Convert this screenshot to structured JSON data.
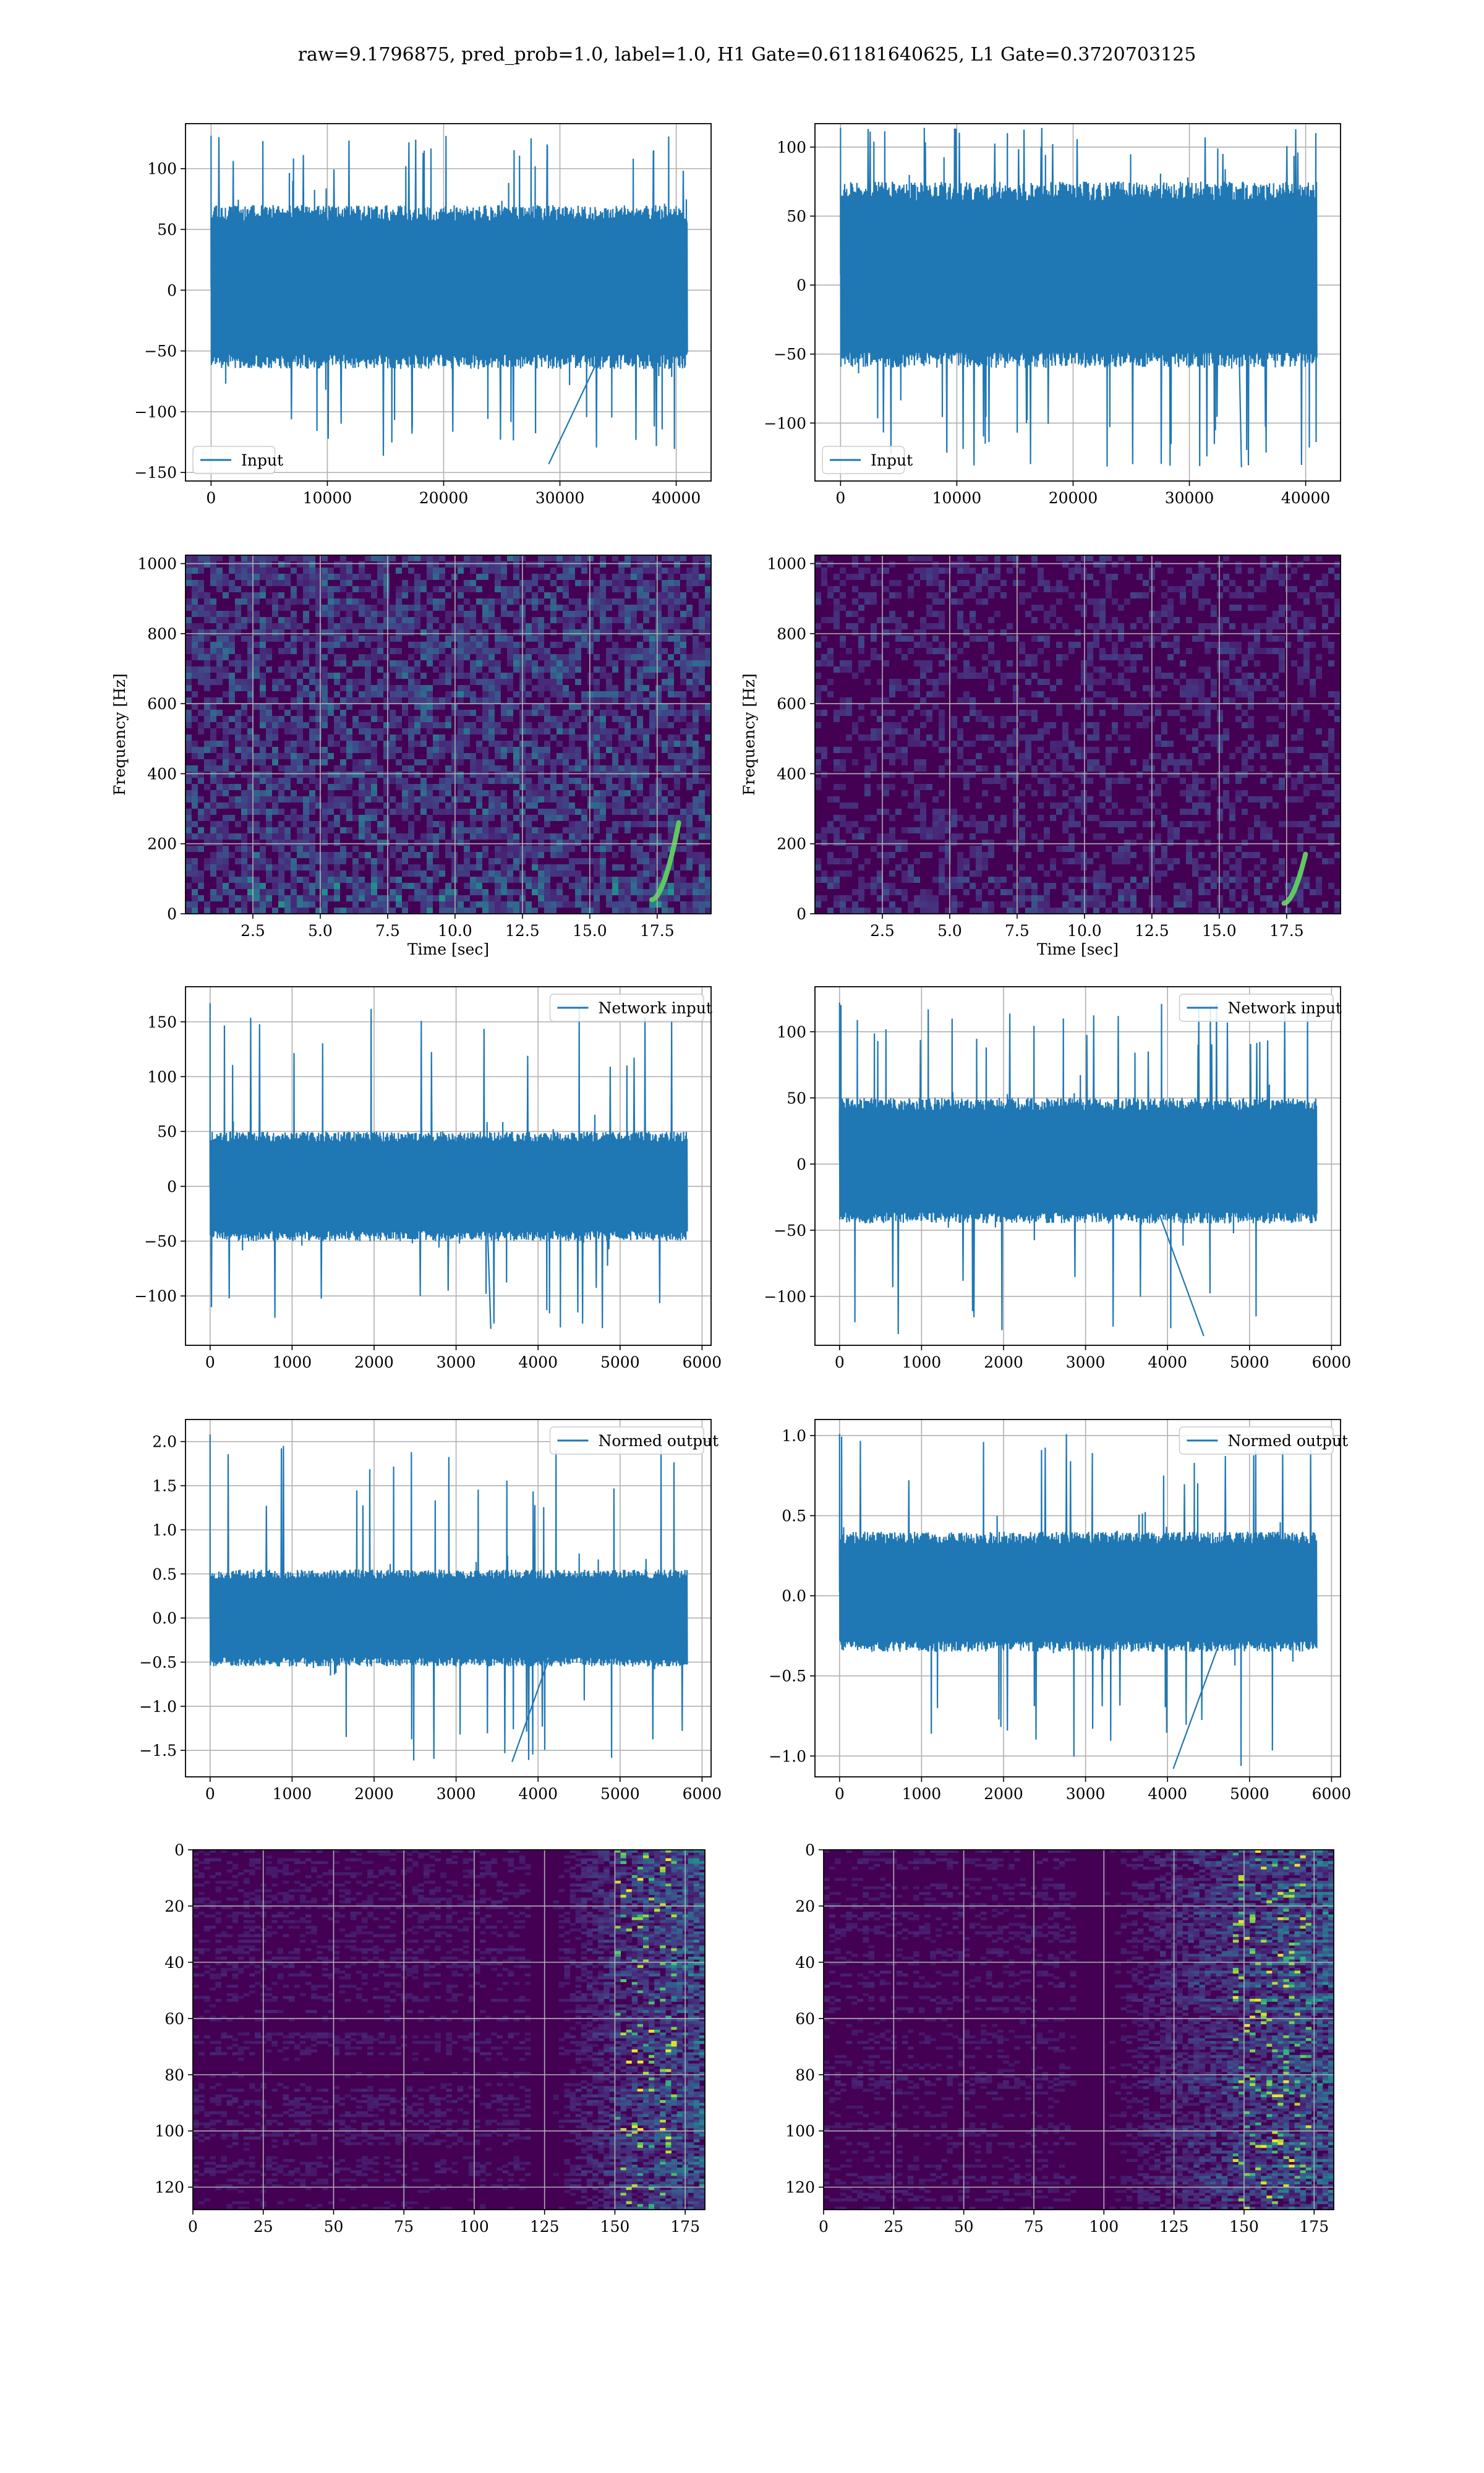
{
  "figure": {
    "title": "raw=9.1796875, pred_prob=1.0, label=1.0, H1 Gate=0.61181640625, L1 Gate=0.3720703125"
  },
  "colors": {
    "line": "#1f77b4",
    "heat_low": "#440154",
    "heat_mid": "#21918c",
    "heat_high": "#fde725",
    "grid": "#b0b0b0",
    "axes": "#000000"
  },
  "chart_data": [
    {
      "id": "h1-input",
      "type": "line",
      "legend": [
        "Input"
      ],
      "legend_loc": "lower-left",
      "series": [
        {
          "name": "Input",
          "x_range": [
            0,
            40960
          ],
          "y_envelope": {
            "core": [
              -65,
              70
            ],
            "peaks": [
              -143,
              127
            ]
          }
        }
      ],
      "xlim": [
        -2200,
        43000
      ],
      "ylim": [
        -157,
        137
      ],
      "xticks": [
        0,
        10000,
        20000,
        30000,
        40000
      ],
      "xtick_labels": [
        "0",
        "10000",
        "20000",
        "30000",
        "40000"
      ],
      "yticks": [
        -150,
        -100,
        -50,
        0,
        50,
        100
      ],
      "ytick_labels": [
        "−150",
        "−100",
        "−50",
        "0",
        "50",
        "100"
      ],
      "grid": true
    },
    {
      "id": "l1-input",
      "type": "line",
      "legend": [
        "Input"
      ],
      "legend_loc": "lower-left",
      "series": [
        {
          "name": "Input",
          "x_range": [
            0,
            40960
          ],
          "y_envelope": {
            "core": [
              -60,
              75
            ],
            "peaks": [
              -132,
              114
            ]
          }
        }
      ],
      "xlim": [
        -2200,
        43000
      ],
      "ylim": [
        -142,
        117
      ],
      "xticks": [
        0,
        10000,
        20000,
        30000,
        40000
      ],
      "xtick_labels": [
        "0",
        "10000",
        "20000",
        "30000",
        "40000"
      ],
      "yticks": [
        -100,
        -50,
        0,
        50,
        100
      ],
      "ytick_labels": [
        "−100",
        "−50",
        "0",
        "50",
        "100"
      ],
      "grid": true
    },
    {
      "id": "h1-spectrogram",
      "type": "heatmap",
      "xlabel": "Time [sec]",
      "ylabel": "Frequency [Hz]",
      "xlim": [
        0,
        19.5
      ],
      "ylim": [
        0,
        1024
      ],
      "xticks": [
        2.5,
        5.0,
        7.5,
        10.0,
        12.5,
        15.0,
        17.5
      ],
      "xtick_labels": [
        "2.5",
        "5.0",
        "7.5",
        "10.0",
        "12.5",
        "15.0",
        "17.5"
      ],
      "yticks": [
        0,
        200,
        400,
        600,
        800,
        1000
      ],
      "ytick_labels": [
        "0",
        "200",
        "400",
        "600",
        "800",
        "1000"
      ],
      "chirp": {
        "t_start": 17.3,
        "t_end": 18.3,
        "f_low": 40,
        "f_high": 260
      },
      "intensity": 0.55,
      "grid": true
    },
    {
      "id": "l1-spectrogram",
      "type": "heatmap",
      "xlabel": "Time [sec]",
      "ylabel": "Frequency [Hz]",
      "xlim": [
        0,
        19.5
      ],
      "ylim": [
        0,
        1024
      ],
      "xticks": [
        2.5,
        5.0,
        7.5,
        10.0,
        12.5,
        15.0,
        17.5
      ],
      "xtick_labels": [
        "2.5",
        "5.0",
        "7.5",
        "10.0",
        "12.5",
        "15.0",
        "17.5"
      ],
      "yticks": [
        0,
        200,
        400,
        600,
        800,
        1000
      ],
      "ytick_labels": [
        "0",
        "200",
        "400",
        "600",
        "800",
        "1000"
      ],
      "chirp": {
        "t_start": 17.4,
        "t_end": 18.2,
        "f_low": 30,
        "f_high": 170
      },
      "intensity": 0.3,
      "grid": true
    },
    {
      "id": "h1-network-input",
      "type": "line",
      "legend": [
        "Network input"
      ],
      "legend_loc": "upper-right",
      "series": [
        {
          "name": "Network input",
          "x_range": [
            0,
            5820
          ],
          "y_envelope": {
            "core": [
              -50,
              50
            ],
            "peaks": [
              -130,
              167
            ]
          }
        }
      ],
      "xlim": [
        -300,
        6110
      ],
      "ylim": [
        -145,
        182
      ],
      "xticks": [
        0,
        1000,
        2000,
        3000,
        4000,
        5000,
        6000
      ],
      "xtick_labels": [
        "0",
        "1000",
        "2000",
        "3000",
        "4000",
        "5000",
        "6000"
      ],
      "yticks": [
        -100,
        -50,
        0,
        50,
        100,
        150
      ],
      "ytick_labels": [
        "−100",
        "−50",
        "0",
        "50",
        "100",
        "150"
      ],
      "grid": true
    },
    {
      "id": "l1-network-input",
      "type": "line",
      "legend": [
        "Network input"
      ],
      "legend_loc": "upper-right",
      "series": [
        {
          "name": "Network input",
          "x_range": [
            0,
            5820
          ],
          "y_envelope": {
            "core": [
              -45,
              50
            ],
            "peaks": [
              -130,
              122
            ]
          }
        }
      ],
      "xlim": [
        -300,
        6110
      ],
      "ylim": [
        -137,
        134
      ],
      "xticks": [
        0,
        1000,
        2000,
        3000,
        4000,
        5000,
        6000
      ],
      "xtick_labels": [
        "0",
        "1000",
        "2000",
        "3000",
        "4000",
        "5000",
        "6000"
      ],
      "yticks": [
        -100,
        -50,
        0,
        50,
        100
      ],
      "ytick_labels": [
        "−100",
        "−50",
        "0",
        "50",
        "100"
      ],
      "grid": true
    },
    {
      "id": "h1-normed-output",
      "type": "line",
      "legend": [
        "Normed output"
      ],
      "legend_loc": "upper-right",
      "series": [
        {
          "name": "Normed output",
          "x_range": [
            0,
            5820
          ],
          "y_envelope": {
            "core": [
              -0.55,
              0.55
            ],
            "peaks": [
              -1.63,
              2.08
            ]
          }
        }
      ],
      "xlim": [
        -300,
        6110
      ],
      "ylim": [
        -1.8,
        2.25
      ],
      "xticks": [
        0,
        1000,
        2000,
        3000,
        4000,
        5000,
        6000
      ],
      "xtick_labels": [
        "0",
        "1000",
        "2000",
        "3000",
        "4000",
        "5000",
        "6000"
      ],
      "yticks": [
        -1.5,
        -1.0,
        -0.5,
        0.0,
        0.5,
        1.0,
        1.5,
        2.0
      ],
      "ytick_labels": [
        "−1.5",
        "−1.0",
        "−0.5",
        "0.0",
        "0.5",
        "1.0",
        "1.5",
        "2.0"
      ],
      "grid": true
    },
    {
      "id": "l1-normed-output",
      "type": "line",
      "legend": [
        "Normed output"
      ],
      "legend_loc": "upper-right",
      "series": [
        {
          "name": "Normed output",
          "x_range": [
            0,
            5820
          ],
          "y_envelope": {
            "core": [
              -0.35,
              0.4
            ],
            "peaks": [
              -1.08,
              1.01
            ]
          }
        }
      ],
      "xlim": [
        -300,
        6110
      ],
      "ylim": [
        -1.13,
        1.1
      ],
      "xticks": [
        0,
        1000,
        2000,
        3000,
        4000,
        5000,
        6000
      ],
      "xtick_labels": [
        "0",
        "1000",
        "2000",
        "3000",
        "4000",
        "5000",
        "6000"
      ],
      "yticks": [
        -1.0,
        -0.5,
        0.0,
        0.5,
        1.0
      ],
      "ytick_labels": [
        "−1.0",
        "−0.5",
        "0.0",
        "0.5",
        "1.0"
      ],
      "grid": true
    },
    {
      "id": "h1-feature-map",
      "type": "heatmap",
      "xlim": [
        0,
        182
      ],
      "ylim": [
        128,
        0
      ],
      "xticks": [
        0,
        25,
        50,
        75,
        100,
        125,
        150,
        175
      ],
      "xtick_labels": [
        "0",
        "25",
        "50",
        "75",
        "100",
        "125",
        "150",
        "175"
      ],
      "yticks": [
        0,
        20,
        40,
        60,
        80,
        100,
        120
      ],
      "ytick_labels": [
        "0",
        "20",
        "40",
        "60",
        "80",
        "100",
        "120"
      ],
      "activity_start_col": 120,
      "hotspot_cols": [
        150,
        170
      ],
      "grid": true
    },
    {
      "id": "l1-feature-map",
      "type": "heatmap",
      "xlim": [
        0,
        182
      ],
      "ylim": [
        128,
        0
      ],
      "xticks": [
        0,
        25,
        50,
        75,
        100,
        125,
        150,
        175
      ],
      "xtick_labels": [
        "0",
        "25",
        "50",
        "75",
        "100",
        "125",
        "150",
        "175"
      ],
      "yticks": [
        0,
        20,
        40,
        60,
        80,
        100,
        120
      ],
      "ytick_labels": [
        "0",
        "20",
        "40",
        "60",
        "80",
        "100",
        "120"
      ],
      "activity_start_col": 90,
      "hotspot_cols": [
        145,
        172
      ],
      "grid": true
    }
  ]
}
